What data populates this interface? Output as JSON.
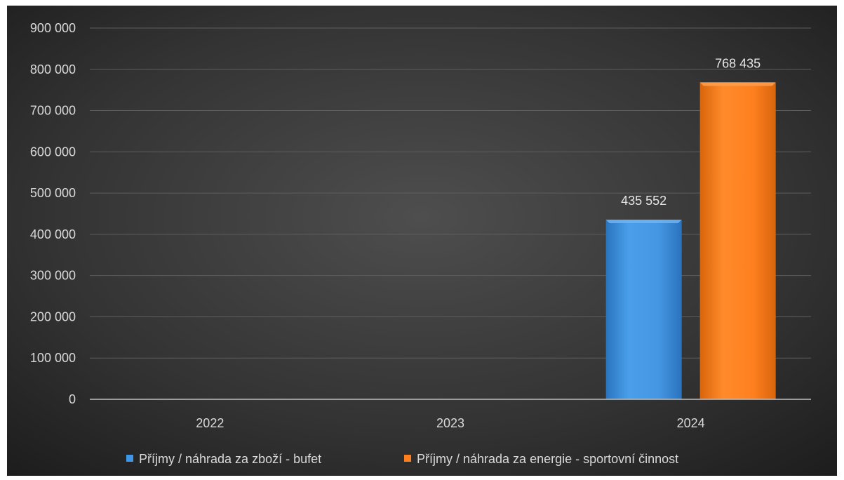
{
  "chart_data": {
    "type": "bar",
    "categories": [
      "2022",
      "2023",
      "2024"
    ],
    "series": [
      {
        "name": "Příjmy / náhrada za zboží - bufet",
        "values": [
          0,
          0,
          435552
        ],
        "data_labels": [
          null,
          null,
          "435 552"
        ]
      },
      {
        "name": "Příjmy / náhrada za energie - sportovní činnost",
        "values": [
          0,
          0,
          768435
        ],
        "data_labels": [
          null,
          null,
          "768 435"
        ]
      }
    ],
    "y_ticks": [
      {
        "value": 0,
        "label": "0"
      },
      {
        "value": 100000,
        "label": "100 000"
      },
      {
        "value": 200000,
        "label": "200 000"
      },
      {
        "value": 300000,
        "label": "300 000"
      },
      {
        "value": 400000,
        "label": "400 000"
      },
      {
        "value": 500000,
        "label": "500 000"
      },
      {
        "value": 600000,
        "label": "600 000"
      },
      {
        "value": 700000,
        "label": "700 000"
      },
      {
        "value": 800000,
        "label": "800 000"
      },
      {
        "value": 900000,
        "label": "900 000"
      }
    ],
    "ylim": [
      0,
      900000
    ],
    "grid": true,
    "legend_position": "bottom"
  },
  "colors": {
    "background_center": "#4a4a4a",
    "background_edge": "#1f1f1f",
    "series_1": "#3f95e6",
    "series_1_light": "#6fb4f2",
    "series_1_dark": "#2a73bd",
    "series_2": "#ff7f1e",
    "series_2_light": "#ffa050",
    "series_2_dark": "#d8650c",
    "gridline": "#5e5e5e",
    "axis_line": "#bfbfbf"
  }
}
